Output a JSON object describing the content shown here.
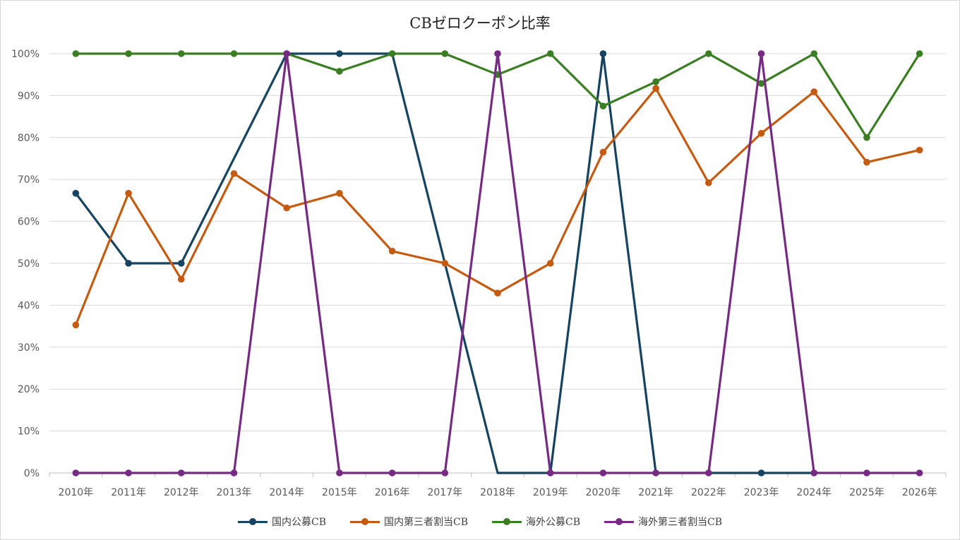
{
  "chart_data": {
    "type": "line",
    "title": "CBゼロクーポン比率",
    "xlabel": "",
    "ylabel": "",
    "ylim": [
      0,
      100
    ],
    "grid": true,
    "legend": "bottom",
    "categories": [
      "2010年",
      "2011年",
      "2012年",
      "2013年",
      "2014年",
      "2015年",
      "2016年",
      "2017年",
      "2018年",
      "2019年",
      "2020年",
      "2021年",
      "2022年",
      "2023年",
      "2024年",
      "2025年",
      "2026年"
    ],
    "y_ticks": [
      "0%",
      "10%",
      "20%",
      "30%",
      "40%",
      "50%",
      "60%",
      "70%",
      "80%",
      "90%",
      "100%"
    ],
    "series": [
      {
        "name": "国内公募CB",
        "color": "#16435f",
        "values": [
          66.7,
          50,
          50,
          null,
          100,
          100,
          100,
          null,
          null,
          0,
          100,
          0,
          null,
          0,
          0,
          null,
          null
        ],
        "marker_values": [
          66.7,
          50,
          50,
          null,
          null,
          100,
          null,
          null,
          null,
          null,
          100,
          null,
          null,
          0,
          null,
          null,
          null
        ],
        "segments": [
          [
            0,
            1
          ],
          [
            1,
            2
          ],
          [
            2,
            4
          ],
          [
            4,
            5
          ],
          [
            5,
            6
          ],
          [
            6,
            8
          ],
          [
            8,
            9
          ],
          [
            9,
            10
          ],
          [
            10,
            11
          ],
          [
            11,
            13
          ],
          [
            13,
            14
          ]
        ]
      },
      {
        "name": "国内第三者割当CB",
        "color": "#c55a11",
        "values": [
          35.3,
          66.7,
          46.2,
          71.4,
          63.2,
          66.7,
          52.9,
          50,
          42.9,
          50,
          76.5,
          91.7,
          69.2,
          81,
          90.9,
          74.1,
          77
        ],
        "marker_values": [
          35.3,
          66.7,
          46.2,
          71.4,
          63.2,
          66.7,
          52.9,
          50,
          42.9,
          50,
          76.5,
          91.7,
          69.2,
          81,
          90.9,
          74.1,
          77
        ]
      },
      {
        "name": "海外公募CB",
        "color": "#3a7d22",
        "values": [
          100,
          100,
          100,
          100,
          100,
          95.8,
          100,
          100,
          95,
          100,
          87.5,
          93.3,
          100,
          92.9,
          100,
          80,
          100
        ],
        "marker_values": [
          100,
          100,
          100,
          100,
          100,
          95.8,
          100,
          100,
          95,
          100,
          87.5,
          93.3,
          100,
          92.9,
          100,
          80,
          100
        ]
      },
      {
        "name": "海外第三者割当CB",
        "color": "#762a83",
        "values": [
          0,
          0,
          0,
          0,
          100,
          0,
          0,
          0,
          100,
          0,
          0,
          0,
          0,
          100,
          0,
          0,
          0
        ],
        "marker_values": [
          0,
          0,
          0,
          0,
          100,
          0,
          0,
          0,
          100,
          0,
          0,
          0,
          0,
          100,
          0,
          0,
          0
        ]
      }
    ]
  }
}
